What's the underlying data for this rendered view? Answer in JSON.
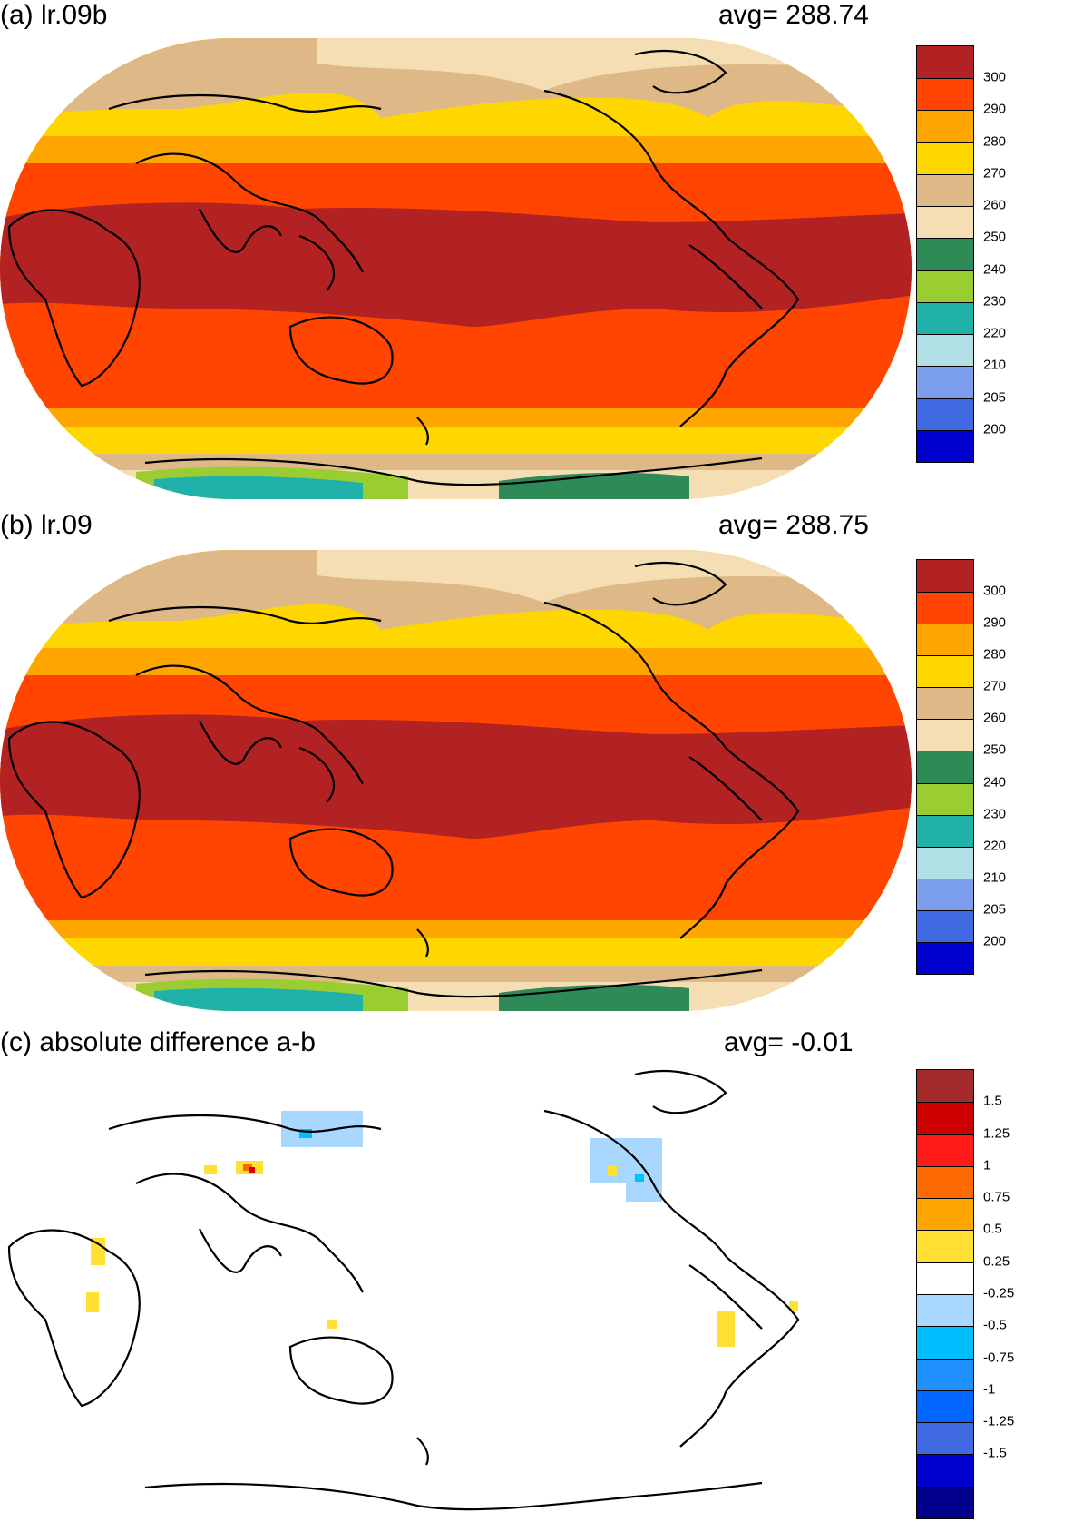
{
  "panels": [
    {
      "id": "a",
      "title": "(a) lr.09b",
      "avg": "avg=  288.74",
      "legend": {
        "colors": [
          "#b22222",
          "#ff4500",
          "#ffa500",
          "#ffd700",
          "#deb887",
          "#f5deb3",
          "#2e8b57",
          "#9acd32",
          "#20b2aa",
          "#b0e0e6",
          "#7b9eed",
          "#4169e1",
          "#0000cd"
        ],
        "labels": [
          "300",
          "290",
          "280",
          "270",
          "260",
          "250",
          "240",
          "230",
          "220",
          "210",
          "205",
          "200"
        ]
      }
    },
    {
      "id": "b",
      "title": "(b) lr.09",
      "avg": "avg=  288.75",
      "legend": {
        "colors": [
          "#b22222",
          "#ff4500",
          "#ffa500",
          "#ffd700",
          "#deb887",
          "#f5deb3",
          "#2e8b57",
          "#9acd32",
          "#20b2aa",
          "#b0e0e6",
          "#7b9eed",
          "#4169e1",
          "#0000cd"
        ],
        "labels": [
          "300",
          "290",
          "280",
          "270",
          "260",
          "250",
          "240",
          "230",
          "220",
          "210",
          "205",
          "200"
        ]
      }
    },
    {
      "id": "c",
      "title": "(c) absolute difference a-b",
      "avg": "avg=   -0.01",
      "legend": {
        "colors": [
          "#a52a2a",
          "#cd0000",
          "#ff1a1a",
          "#ff6a00",
          "#ffa500",
          "#ffe033",
          "#ffffff",
          "#a8d8ff",
          "#00bfff",
          "#1e90ff",
          "#0066ff",
          "#4169e1",
          "#0000cd",
          "#00008b"
        ],
        "labels": [
          "1.5",
          "1.25",
          "1",
          "0.75",
          "0.5",
          "0.25",
          "-0.25",
          "-0.5",
          "-0.75",
          "-1",
          "-1.25",
          "-1.5"
        ]
      }
    }
  ]
}
